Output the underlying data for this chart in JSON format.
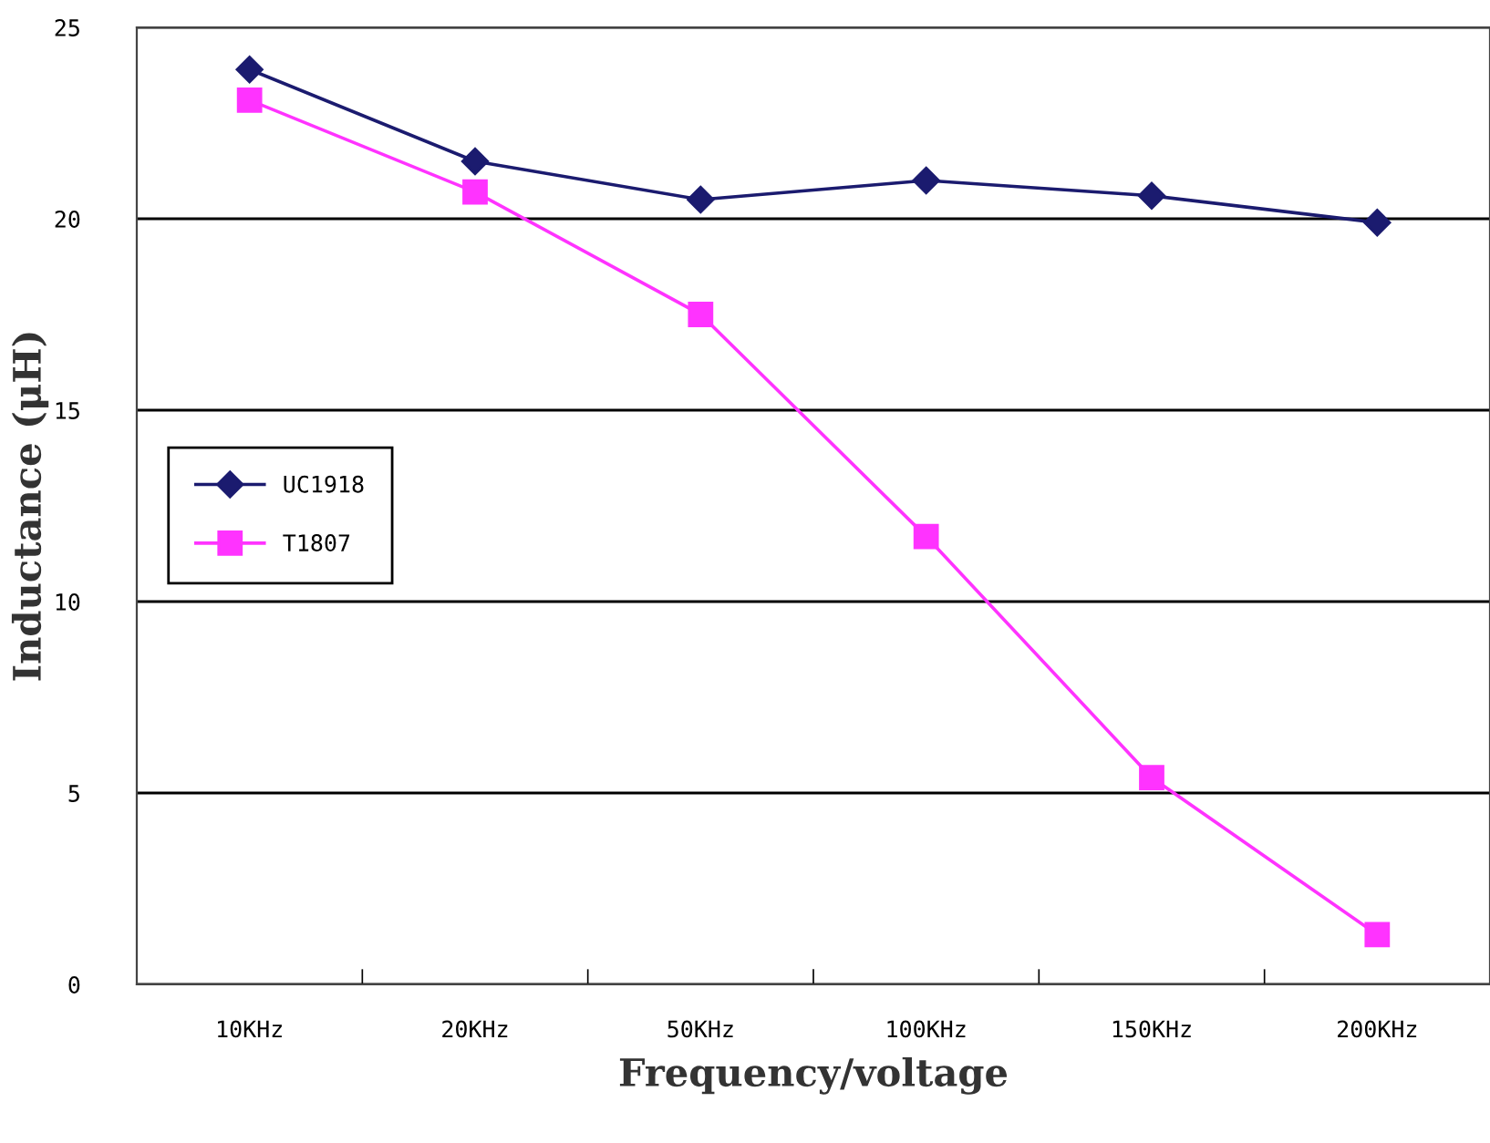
{
  "chart_data": {
    "type": "line",
    "xlabel": "Frequency/voltage",
    "ylabel": "Inductance (μH)",
    "categories": [
      "10KHz",
      "20KHz",
      "50KHz",
      "100KHz",
      "150KHz",
      "200KHz"
    ],
    "series": [
      {
        "name": "UC1918",
        "color": "#1b1b6f",
        "marker": "diamond",
        "values": [
          23.9,
          21.5,
          20.5,
          21.0,
          20.6,
          19.9
        ]
      },
      {
        "name": "T1807",
        "color": "#ff33ff",
        "marker": "square",
        "values": [
          23.1,
          20.7,
          17.5,
          11.7,
          5.4,
          1.3
        ]
      }
    ],
    "ylim": [
      0,
      25
    ],
    "yticks": [
      0,
      5,
      10,
      15,
      20,
      25
    ],
    "grid": "y",
    "legend": "center left",
    "line_style": "solid"
  }
}
